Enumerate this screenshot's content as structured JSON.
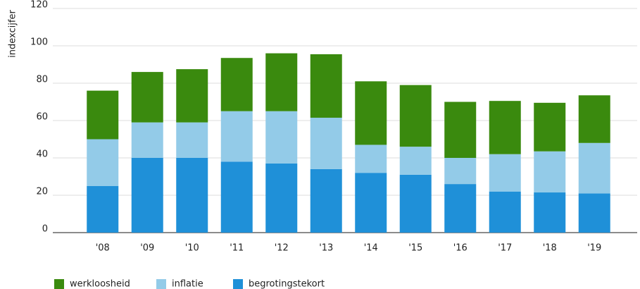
{
  "chart_data": {
    "type": "stacked_bar",
    "y_label": "indexcijfer",
    "categories": [
      "'08",
      "'09",
      "'10",
      "'11",
      "'12",
      "'13",
      "'14",
      "'15",
      "'16",
      "'17",
      "'18",
      "'19"
    ],
    "series": [
      {
        "name": "werkloosheid",
        "color": "#3a8a0e",
        "values": [
          26,
          27,
          28.5,
          28.5,
          31,
          34,
          34,
          33,
          30,
          28.5,
          26,
          25.5
        ]
      },
      {
        "name": "inflatie",
        "color": "#93cbe8",
        "values": [
          25,
          19,
          19,
          27,
          28,
          27.5,
          15,
          15,
          14,
          20,
          22,
          27
        ]
      },
      {
        "name": "begrotingstekort",
        "color": "#1f90d8",
        "values": [
          25,
          40,
          40,
          38,
          37,
          34,
          32,
          31,
          26,
          22,
          21.5,
          21
        ]
      }
    ],
    "ylim": [
      0,
      120
    ],
    "yticks": [
      0,
      20,
      40,
      60,
      80,
      100,
      120
    ],
    "grid": true
  }
}
